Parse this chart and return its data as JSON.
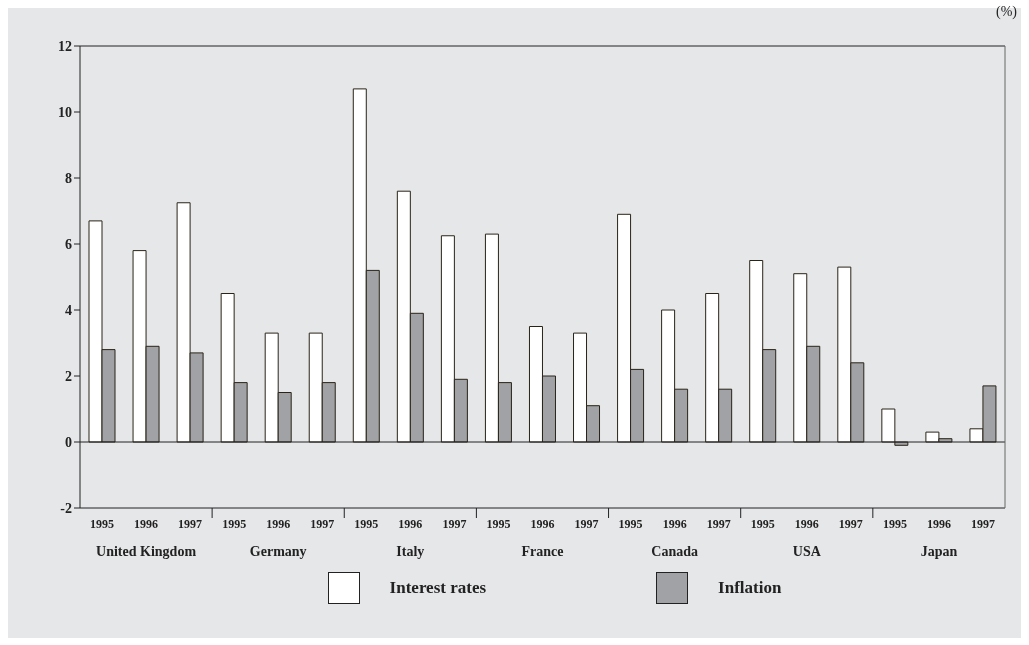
{
  "chart_data": {
    "type": "bar",
    "ylabel": "(%)",
    "categories": [
      "1995",
      "1996",
      "1997",
      "1995",
      "1996",
      "1997",
      "1995",
      "1996",
      "1997",
      "1995",
      "1996",
      "1997",
      "1995",
      "1996",
      "1997",
      "1995",
      "1996",
      "1997",
      "1995",
      "1996",
      "1997"
    ],
    "annotations": [
      "United Kingdom",
      "Germany",
      "Italy",
      "France",
      "Canada",
      "USA",
      "Japan"
    ],
    "series": [
      {
        "name": "Interest rates",
        "color": "#ffffff",
        "values": [
          6.7,
          5.8,
          7.25,
          4.5,
          3.3,
          3.3,
          10.7,
          7.6,
          6.25,
          6.3,
          3.5,
          3.3,
          6.9,
          4.0,
          4.5,
          5.5,
          5.1,
          5.3,
          1.0,
          0.3,
          0.4
        ]
      },
      {
        "name": "Inflation",
        "color": "#a0a2a6",
        "values": [
          2.8,
          2.9,
          2.7,
          1.8,
          1.5,
          1.8,
          5.2,
          3.9,
          1.9,
          1.8,
          2.0,
          1.1,
          2.2,
          1.6,
          1.6,
          2.8,
          2.9,
          2.4,
          -0.1,
          0.1,
          1.7
        ]
      }
    ],
    "ylim": [
      -2,
      12
    ],
    "yticks": [
      -2,
      0,
      2,
      4,
      6,
      8,
      10,
      12
    ],
    "ref_lines": [
      {
        "axis": "y",
        "value": 0
      }
    ],
    "legend": "bottom",
    "grid": false
  }
}
